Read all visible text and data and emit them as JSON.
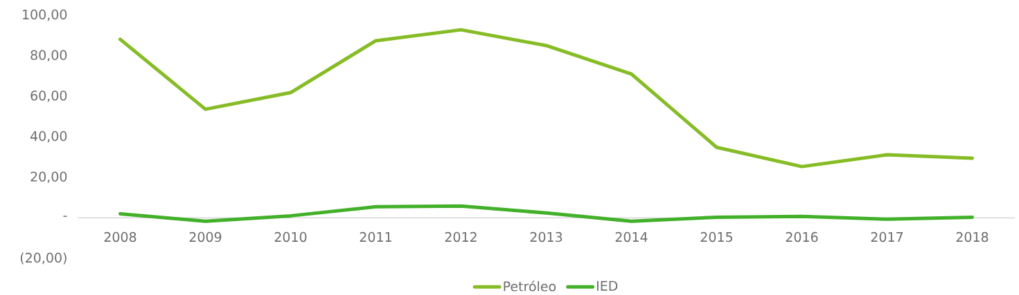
{
  "chart_data": {
    "type": "line",
    "categories": [
      "2008",
      "2009",
      "2010",
      "2011",
      "2012",
      "2013",
      "2014",
      "2015",
      "2016",
      "2017",
      "2018"
    ],
    "series": [
      {
        "name": "Petróleo",
        "color": "#86bc25",
        "values": [
          88.1,
          53.6,
          61.8,
          87.4,
          92.8,
          85.0,
          71.0,
          34.8,
          25.3,
          31.1,
          29.4
        ]
      },
      {
        "name": "IED",
        "color": "#43b02a",
        "values": [
          2.0,
          -1.7,
          1.0,
          5.5,
          5.8,
          2.4,
          -1.7,
          0.3,
          0.7,
          -0.7,
          0.3
        ]
      }
    ],
    "ylim": [
      -20,
      100
    ],
    "yticks": [
      {
        "value": -20,
        "label": "(20,00)"
      },
      {
        "value": 0,
        "label": "-"
      },
      {
        "value": 20,
        "label": "20,00"
      },
      {
        "value": 40,
        "label": "40,00"
      },
      {
        "value": 60,
        "label": "60,00"
      },
      {
        "value": 80,
        "label": "80,00"
      },
      {
        "value": 100,
        "label": "100,00"
      }
    ],
    "legend": "bottom",
    "grid": false,
    "marker": "none",
    "line_style": "solid"
  }
}
